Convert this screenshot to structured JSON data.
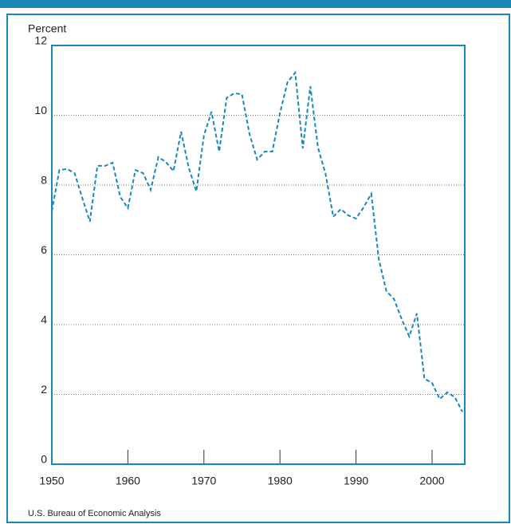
{
  "chart_data": {
    "type": "line",
    "y_label": "Percent",
    "source": "U.S. Bureau of Economic Analysis",
    "x": [
      1950,
      1951,
      1952,
      1953,
      1954,
      1955,
      1956,
      1957,
      1958,
      1959,
      1960,
      1961,
      1962,
      1963,
      1964,
      1965,
      1966,
      1967,
      1968,
      1969,
      1970,
      1971,
      1972,
      1973,
      1974,
      1975,
      1976,
      1977,
      1978,
      1979,
      1980,
      1981,
      1982,
      1983,
      1984,
      1985,
      1986,
      1987,
      1988,
      1989,
      1990,
      1991,
      1992,
      1993,
      1994,
      1995,
      1996,
      1997,
      1998,
      1999,
      2000,
      2001,
      2002,
      2003,
      2004
    ],
    "values": [
      7.25,
      8.43,
      8.46,
      8.34,
      7.63,
      6.95,
      8.55,
      8.55,
      8.64,
      7.66,
      7.34,
      8.43,
      8.34,
      7.86,
      8.8,
      8.66,
      8.4,
      9.53,
      8.5,
      7.82,
      9.42,
      10.1,
      8.96,
      10.5,
      10.63,
      10.6,
      9.46,
      8.73,
      8.96,
      8.96,
      10.06,
      10.95,
      11.22,
      9.05,
      10.83,
      9.07,
      8.32,
      7.09,
      7.31,
      7.13,
      7.04,
      7.36,
      7.75,
      5.87,
      4.96,
      4.73,
      4.16,
      3.66,
      4.32,
      2.45,
      2.33,
      1.87,
      2.06,
      1.92,
      1.5
    ],
    "color": "#1b87b9",
    "xlim": [
      1950,
      2004.3
    ],
    "xticks": [
      1950,
      1960,
      1970,
      1980,
      1990,
      2000
    ],
    "ylim": [
      0,
      12
    ],
    "yticks": [
      0,
      2,
      4,
      6,
      8,
      10,
      12
    ],
    "grid": true
  }
}
